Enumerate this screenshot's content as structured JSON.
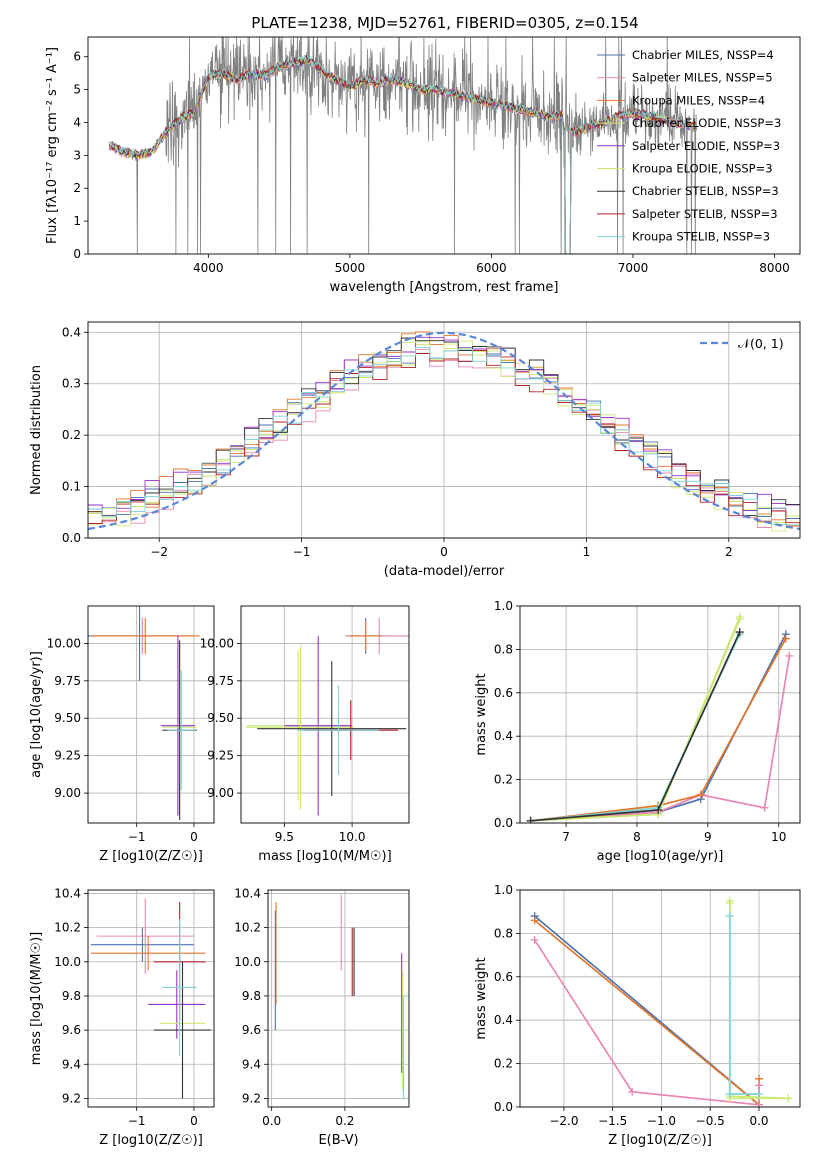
{
  "title": "PLATE=1238, MJD=52761, FIBERID=0305, z=0.154",
  "colors": {
    "chabrier_miles": "#4c72b0",
    "salpeter_miles": "#e887b4",
    "kroupa_miles": "#e3772d",
    "chabrier_elodie": "#d2e87a",
    "salpeter_elodie": "#9932cc",
    "kroupa_elodie": "#c9e86f",
    "chabrier_stelib": "#333333",
    "salpeter_stelib": "#b22222",
    "kroupa_stelib": "#7fd3d7",
    "data": "#808080",
    "normal": "#5b87d9",
    "grid": "#b0b0b0"
  },
  "chart_data": [
    {
      "id": "spectrum",
      "type": "line",
      "xlabel": "wavelength [Angstrom, rest frame]",
      "ylabel": "Flux [fλ10⁻¹⁷ erg cm⁻² s⁻¹ A⁻¹]",
      "xlim": [
        3150,
        8180
      ],
      "ylim": [
        0,
        6.6
      ],
      "xticks": [
        4000,
        5000,
        6000,
        7000,
        8000
      ],
      "yticks": [
        0,
        1,
        2,
        3,
        4,
        5,
        6
      ],
      "grid": false,
      "legend_position": "top-right",
      "legend": [
        "Chabrier MILES, NSSP=4",
        "Salpeter MILES, NSSP=5",
        "Kroupa MILES, NSSP=4",
        "Chabrier ELODIE, NSSP=3",
        "Salpeter ELODIE, NSSP=3",
        "Kroupa ELODIE, NSSP=3",
        "Chabrier STELIB, NSSP=3",
        "Salpeter STELIB, NSSP=3",
        "Kroupa STELIB, NSSP=3"
      ],
      "model_continuum": {
        "x": [
          3300,
          3400,
          3500,
          3600,
          3700,
          3800,
          3900,
          4000,
          4100,
          4200,
          4300,
          4400,
          4500,
          4600,
          4700,
          4800,
          4900,
          5000,
          5100,
          5200,
          5300,
          5400,
          5500,
          5600,
          5700,
          5800,
          5900,
          6000,
          6100,
          6200,
          6300,
          6400,
          6500
        ],
        "y": [
          3.3,
          3.1,
          3.0,
          3.1,
          3.7,
          4.1,
          4.3,
          5.4,
          5.5,
          5.3,
          5.5,
          5.4,
          5.7,
          5.8,
          5.9,
          5.6,
          5.3,
          5.1,
          5.3,
          5.2,
          5.3,
          5.2,
          5.0,
          5.0,
          4.9,
          4.8,
          4.7,
          4.6,
          4.5,
          4.4,
          4.3,
          4.2,
          4.2
        ]
      },
      "red_tail": {
        "x": [
          6520,
          6600,
          6700,
          6800,
          6900,
          7000,
          7100,
          7200,
          7300,
          7400
        ],
        "y": [
          3.8,
          3.7,
          3.9,
          4.0,
          4.2,
          4.3,
          4.2,
          4.1,
          4.0,
          3.9
        ]
      }
    },
    {
      "id": "residuals",
      "type": "line",
      "xlabel": "(data-model)/error",
      "ylabel": "Normed distribution",
      "xlim": [
        -2.5,
        2.5
      ],
      "ylim": [
        0,
        0.42
      ],
      "xticks": [
        -2,
        -1,
        0,
        1,
        2
      ],
      "yticks": [
        0.0,
        0.1,
        0.2,
        0.3,
        0.4
      ],
      "grid": true,
      "legend_position": "top-right",
      "legend": [
        "𝒩(0, 1)"
      ],
      "series_offsets": [
        0.0,
        -0.012,
        0.01,
        -0.008,
        0.014,
        -0.004,
        0.006,
        -0.01,
        0.003
      ]
    },
    {
      "id": "age-vs-z",
      "type": "scatter",
      "xlabel": "Z [log10(Z/Z☉)]",
      "ylabel": "age  [log10(age/yr)]",
      "xlim": [
        -1.85,
        0.35
      ],
      "ylim": [
        8.8,
        10.25
      ],
      "xticks": [
        -1,
        0
      ],
      "yticks": [
        9.0,
        9.25,
        9.5,
        9.75,
        10.0
      ],
      "grid": true,
      "points": [
        {
          "series": "chabrier_miles",
          "x": -0.95,
          "y": 10.05,
          "xerr": 0.9,
          "yerr": 0.3
        },
        {
          "series": "salpeter_miles",
          "x": -0.9,
          "y": 10.05,
          "xerr": 0.9,
          "yerr": 0.12
        },
        {
          "series": "kroupa_miles",
          "x": -0.85,
          "y": 10.05,
          "xerr": 0.95,
          "yerr": 0.12
        },
        {
          "series": "salpeter_elodie",
          "x": -0.28,
          "y": 9.45,
          "xerr": 0.3,
          "yerr": 0.6
        },
        {
          "series": "kroupa_elodie",
          "x": -0.25,
          "y": 9.44,
          "xerr": 0.3,
          "yerr": 0.55
        },
        {
          "series": "chabrier_stelib",
          "x": -0.25,
          "y": 9.42,
          "xerr": 0.3,
          "yerr": 0.6
        },
        {
          "series": "kroupa_stelib",
          "x": -0.22,
          "y": 9.42,
          "xerr": 0.25,
          "yerr": 0.4
        }
      ]
    },
    {
      "id": "age-vs-mass",
      "type": "scatter",
      "xlabel": "mass [log10(M/M☉)]",
      "ylabel": "",
      "xlim": [
        9.18,
        10.42
      ],
      "ylim": [
        8.8,
        10.25
      ],
      "xticks": [
        9.5,
        10.0
      ],
      "yticks": [
        9.0,
        9.25,
        9.5,
        9.75,
        10.0
      ],
      "grid": true,
      "points": [
        {
          "series": "chabrier_miles",
          "x": 10.1,
          "y": 10.05,
          "xerr": 0.15,
          "yerr": 0.12
        },
        {
          "series": "salpeter_miles",
          "x": 10.2,
          "y": 10.05,
          "xerr": 0.25,
          "yerr": 0.12
        },
        {
          "series": "kroupa_miles",
          "x": 10.1,
          "y": 10.05,
          "xerr": 0.12,
          "yerr": 0.1
        },
        {
          "series": "chabrier_elodie",
          "x": 9.6,
          "y": 9.45,
          "xerr": 0.38,
          "yerr": 0.5
        },
        {
          "series": "salpeter_elodie",
          "x": 9.75,
          "y": 9.45,
          "xerr": 0.25,
          "yerr": 0.6
        },
        {
          "series": "kroupa_elodie",
          "x": 9.62,
          "y": 9.44,
          "xerr": 0.4,
          "yerr": 0.55
        },
        {
          "series": "chabrier_stelib",
          "x": 9.85,
          "y": 9.43,
          "xerr": 0.55,
          "yerr": 0.45
        },
        {
          "series": "salpeter_stelib",
          "x": 9.99,
          "y": 9.42,
          "xerr": 0.35,
          "yerr": 0.2
        },
        {
          "series": "kroupa_stelib",
          "x": 9.9,
          "y": 9.42,
          "xerr": 0.3,
          "yerr": 0.3
        }
      ]
    },
    {
      "id": "weight-vs-age",
      "type": "line",
      "xlabel": "age  [log10(age/yr)]",
      "ylabel": "mass weight",
      "xlim": [
        6.35,
        10.3
      ],
      "ylim": [
        0,
        1.0
      ],
      "xticks": [
        7,
        8,
        9,
        10
      ],
      "yticks": [
        0.0,
        0.2,
        0.4,
        0.6,
        0.8,
        1.0
      ],
      "grid": true,
      "series": [
        {
          "key": "chabrier_miles",
          "x": [
            6.5,
            8.3,
            8.9,
            10.1
          ],
          "y": [
            0.01,
            0.05,
            0.11,
            0.87
          ]
        },
        {
          "key": "salpeter_miles",
          "x": [
            6.5,
            8.3,
            8.9,
            9.8,
            10.15
          ],
          "y": [
            0.01,
            0.05,
            0.13,
            0.07,
            0.77
          ]
        },
        {
          "key": "kroupa_miles",
          "x": [
            6.5,
            8.3,
            8.9,
            10.1
          ],
          "y": [
            0.01,
            0.08,
            0.13,
            0.85
          ]
        },
        {
          "key": "chabrier_elodie",
          "x": [
            6.5,
            8.3,
            9.45
          ],
          "y": [
            0.01,
            0.04,
            0.95
          ]
        },
        {
          "key": "kroupa_elodie",
          "x": [
            6.5,
            8.3,
            9.45
          ],
          "y": [
            0.01,
            0.04,
            0.94
          ]
        },
        {
          "key": "kroupa_stelib",
          "x": [
            6.5,
            8.3,
            9.45
          ],
          "y": [
            0.01,
            0.07,
            0.87
          ]
        },
        {
          "key": "chabrier_stelib",
          "x": [
            6.5,
            8.3,
            9.45
          ],
          "y": [
            0.01,
            0.06,
            0.88
          ]
        }
      ]
    },
    {
      "id": "mass-vs-z",
      "type": "scatter",
      "xlabel": "Z [log10(Z/Z☉)]",
      "ylabel": "mass [log10(M/M☉)]",
      "xlim": [
        -1.85,
        0.35
      ],
      "ylim": [
        9.15,
        10.42
      ],
      "xticks": [
        -1,
        0
      ],
      "yticks": [
        9.2,
        9.4,
        9.6,
        9.8,
        10.0,
        10.2,
        10.4
      ],
      "grid": true,
      "points": [
        {
          "series": "chabrier_miles",
          "x": -0.9,
          "y": 10.1,
          "xerr": 0.9,
          "yerr": 0.1
        },
        {
          "series": "salpeter_miles",
          "x": -0.85,
          "y": 10.15,
          "xerr": 0.85,
          "yerr": 0.22
        },
        {
          "series": "kroupa_miles",
          "x": -0.8,
          "y": 10.05,
          "xerr": 1.0,
          "yerr": 0.1
        },
        {
          "series": "salpeter_stelib",
          "x": -0.25,
          "y": 10.0,
          "xerr": 0.45,
          "yerr": 0.35
        },
        {
          "series": "salpeter_elodie",
          "x": -0.3,
          "y": 9.75,
          "xerr": 0.5,
          "yerr": 0.2
        },
        {
          "series": "kroupa_elodie",
          "x": -0.2,
          "y": 9.64,
          "xerr": 0.4,
          "yerr": 0.3
        },
        {
          "series": "chabrier_stelib",
          "x": -0.2,
          "y": 9.6,
          "xerr": 0.5,
          "yerr": 0.4
        },
        {
          "series": "kroupa_stelib",
          "x": -0.25,
          "y": 9.85,
          "xerr": 0.3,
          "yerr": 0.4
        }
      ]
    },
    {
      "id": "mass-vs-ebv",
      "type": "scatter",
      "xlabel": "E(B-V)",
      "ylabel": "",
      "xlim": [
        -0.01,
        0.375
      ],
      "ylim": [
        9.15,
        10.42
      ],
      "xticks": [
        0.0,
        0.2
      ],
      "yticks": [
        9.2,
        9.4,
        9.6,
        9.8,
        10.0,
        10.2,
        10.4
      ],
      "grid": true,
      "points": [
        {
          "series": "chabrier_miles",
          "x": 0.01,
          "y": 9.95,
          "yerr": 0.35
        },
        {
          "series": "kroupa_miles",
          "x": 0.012,
          "y": 10.05,
          "yerr": 0.3
        },
        {
          "series": "salpeter_miles",
          "x": 0.19,
          "y": 10.17,
          "yerr": 0.22
        },
        {
          "series": "salpeter_stelib",
          "x": 0.22,
          "y": 10.0,
          "yerr": 0.2
        },
        {
          "series": "chabrier_stelib",
          "x": 0.225,
          "y": 10.0,
          "yerr": 0.2
        },
        {
          "series": "salpeter_elodie",
          "x": 0.355,
          "y": 9.7,
          "yerr": 0.35
        },
        {
          "series": "kroupa_elodie",
          "x": 0.358,
          "y": 9.6,
          "yerr": 0.35
        },
        {
          "series": "kroupa_stelib",
          "x": 0.36,
          "y": 9.5,
          "yerr": 0.3
        }
      ]
    },
    {
      "id": "weight-vs-z",
      "type": "line",
      "xlabel": "Z [log10(Z/Z☉)]",
      "ylabel": "mass weight",
      "xlim": [
        -2.45,
        0.42
      ],
      "ylim": [
        0,
        1.0
      ],
      "xticks": [
        -2.0,
        -1.5,
        -1.0,
        -0.5,
        0.0
      ],
      "yticks": [
        0.0,
        0.2,
        0.4,
        0.6,
        0.8,
        1.0
      ],
      "grid": true,
      "series": [
        {
          "key": "chabrier_miles",
          "x": [
            -2.3,
            0.0
          ],
          "y": [
            0.88,
            0.01
          ]
        },
        {
          "key": "kroupa_miles",
          "x": [
            -2.3,
            0.0,
            0.0
          ],
          "y": [
            0.86,
            0.01,
            0.13
          ]
        },
        {
          "key": "salpeter_miles",
          "x": [
            -2.3,
            -1.3,
            0.0,
            0.0
          ],
          "y": [
            0.77,
            0.07,
            0.01,
            0.1
          ]
        },
        {
          "key": "chabrier_elodie",
          "x": [
            -0.3,
            -0.3,
            0.3
          ],
          "y": [
            0.95,
            0.04,
            0.04
          ]
        },
        {
          "key": "kroupa_elodie",
          "x": [
            -0.3,
            -0.3,
            0.3
          ],
          "y": [
            0.94,
            0.05,
            0.04
          ]
        },
        {
          "key": "kroupa_stelib",
          "x": [
            -0.3,
            -0.3,
            0.0
          ],
          "y": [
            0.88,
            0.06,
            0.06
          ]
        }
      ]
    }
  ]
}
